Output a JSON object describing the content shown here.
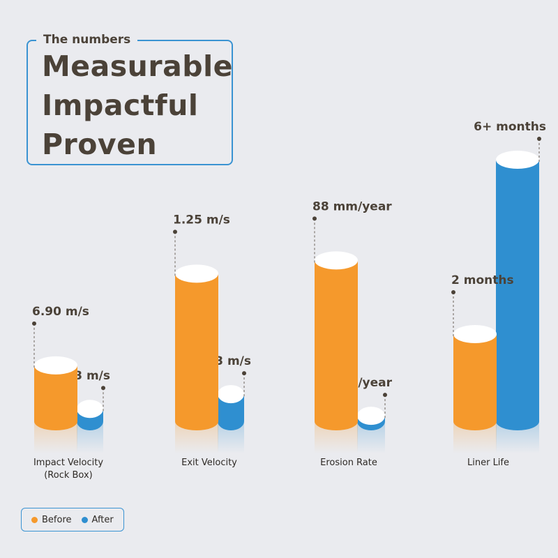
{
  "header": {
    "eyebrow": "The numbers",
    "lines": [
      "Measurable",
      "Impactful",
      "Proven"
    ]
  },
  "colors": {
    "before": "#f5992c",
    "after": "#2f8fd0",
    "accent": "#3a93d2",
    "text": "#4b4238"
  },
  "legend": {
    "before": "Before",
    "after": "After"
  },
  "chart_data": {
    "type": "bar",
    "categories": [
      "Impact Velocity\n(Rock Box)",
      "Exit Velocity",
      "Erosion Rate",
      "Liner Life"
    ],
    "series": [
      {
        "name": "Before",
        "values": [
          6.9,
          1.25,
          88,
          2
        ],
        "labels": [
          "6.90 m/s",
          "1.25 m/s",
          "88 mm/year",
          "2 months"
        ]
      },
      {
        "name": "After",
        "values": [
          1.53,
          0.23,
          3,
          6
        ],
        "labels": [
          "1.53 m/s",
          "0.23 m/s",
          "3 mm/year",
          "6+ months"
        ]
      }
    ],
    "ylim_per_category": [
      [
        0,
        28
      ],
      [
        0,
        1.92
      ],
      [
        0,
        124
      ],
      [
        0,
        5.2
      ]
    ],
    "legend_position": "bottom-left",
    "grid": false
  }
}
